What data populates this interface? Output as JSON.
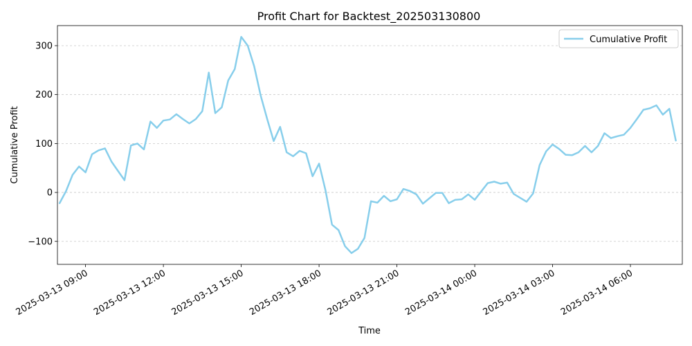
{
  "chart_data": {
    "type": "line",
    "title": "Profit Chart for Backtest_202503130800",
    "xlabel": "Time",
    "ylabel": "Cumulative Profit",
    "xlim": [
      "2025-03-13T07:55",
      "2025-03-14T08:00"
    ],
    "ylim": [
      -147,
      341
    ],
    "grid": {
      "y": true,
      "x": false,
      "style": "dashed"
    },
    "legend_position": "top-right",
    "yticks": [
      {
        "value": -100,
        "label": "−100"
      },
      {
        "value": 0,
        "label": "0"
      },
      {
        "value": 100,
        "label": "100"
      },
      {
        "value": 200,
        "label": "200"
      },
      {
        "value": 300,
        "label": "300"
      }
    ],
    "xticks": [
      {
        "value": "2025-03-13T09:00",
        "label": "2025-03-13 09:00"
      },
      {
        "value": "2025-03-13T12:00",
        "label": "2025-03-13 12:00"
      },
      {
        "value": "2025-03-13T15:00",
        "label": "2025-03-13 15:00"
      },
      {
        "value": "2025-03-13T18:00",
        "label": "2025-03-13 18:00"
      },
      {
        "value": "2025-03-13T21:00",
        "label": "2025-03-13 21:00"
      },
      {
        "value": "2025-03-14T00:00",
        "label": "2025-03-14 00:00"
      },
      {
        "value": "2025-03-14T03:00",
        "label": "2025-03-14 03:00"
      },
      {
        "value": "2025-03-14T06:00",
        "label": "2025-03-14 06:00"
      }
    ],
    "series": [
      {
        "name": "Cumulative Profit",
        "color": "#87ceeb",
        "x": [
          "2025-03-13T08:00",
          "2025-03-13T08:15",
          "2025-03-13T08:30",
          "2025-03-13T08:45",
          "2025-03-13T09:00",
          "2025-03-13T09:15",
          "2025-03-13T09:30",
          "2025-03-13T09:45",
          "2025-03-13T10:00",
          "2025-03-13T10:15",
          "2025-03-13T10:30",
          "2025-03-13T10:45",
          "2025-03-13T11:00",
          "2025-03-13T11:15",
          "2025-03-13T11:30",
          "2025-03-13T11:45",
          "2025-03-13T12:00",
          "2025-03-13T12:15",
          "2025-03-13T12:30",
          "2025-03-13T12:45",
          "2025-03-13T13:00",
          "2025-03-13T13:15",
          "2025-03-13T13:30",
          "2025-03-13T13:45",
          "2025-03-13T14:00",
          "2025-03-13T14:15",
          "2025-03-13T14:30",
          "2025-03-13T14:45",
          "2025-03-13T15:00",
          "2025-03-13T15:15",
          "2025-03-13T15:30",
          "2025-03-13T15:45",
          "2025-03-13T16:00",
          "2025-03-13T16:15",
          "2025-03-13T16:30",
          "2025-03-13T16:45",
          "2025-03-13T17:00",
          "2025-03-13T17:15",
          "2025-03-13T17:30",
          "2025-03-13T17:45",
          "2025-03-13T18:00",
          "2025-03-13T18:15",
          "2025-03-13T18:30",
          "2025-03-13T18:45",
          "2025-03-13T19:00",
          "2025-03-13T19:15",
          "2025-03-13T19:30",
          "2025-03-13T19:45",
          "2025-03-13T20:00",
          "2025-03-13T20:15",
          "2025-03-13T20:30",
          "2025-03-13T20:45",
          "2025-03-13T21:00",
          "2025-03-13T21:15",
          "2025-03-13T21:30",
          "2025-03-13T21:45",
          "2025-03-13T22:00",
          "2025-03-13T22:15",
          "2025-03-13T22:30",
          "2025-03-13T22:45",
          "2025-03-13T23:00",
          "2025-03-13T23:15",
          "2025-03-13T23:30",
          "2025-03-13T23:45",
          "2025-03-14T00:00",
          "2025-03-14T00:15",
          "2025-03-14T00:30",
          "2025-03-14T00:45",
          "2025-03-14T01:00",
          "2025-03-14T01:15",
          "2025-03-14T01:30",
          "2025-03-14T01:45",
          "2025-03-14T02:00",
          "2025-03-14T02:15",
          "2025-03-14T02:30",
          "2025-03-14T02:45",
          "2025-03-14T03:00",
          "2025-03-14T03:15",
          "2025-03-14T03:30",
          "2025-03-14T03:45",
          "2025-03-14T04:00",
          "2025-03-14T04:15",
          "2025-03-14T04:30",
          "2025-03-14T04:45",
          "2025-03-14T05:00",
          "2025-03-14T05:15",
          "2025-03-14T05:30",
          "2025-03-14T05:45",
          "2025-03-14T06:00",
          "2025-03-14T06:15",
          "2025-03-14T06:30",
          "2025-03-14T06:45",
          "2025-03-14T07:00",
          "2025-03-14T07:15",
          "2025-03-14T07:30",
          "2025-03-14T07:45"
        ],
        "y": [
          -22,
          3,
          36,
          53,
          41,
          78,
          86,
          90,
          63,
          44,
          25,
          96,
          100,
          88,
          145,
          132,
          147,
          149,
          160,
          150,
          141,
          150,
          166,
          245,
          162,
          174,
          229,
          252,
          318,
          300,
          258,
          198,
          150,
          105,
          134,
          82,
          74,
          85,
          80,
          33,
          59,
          4,
          -66,
          -77,
          -110,
          -124,
          -115,
          -93,
          -18,
          -21,
          -7,
          -18,
          -14,
          7,
          3,
          -4,
          -23,
          -12,
          -1,
          -1,
          -22,
          -15,
          -14,
          -4,
          -15,
          2,
          19,
          22,
          18,
          20,
          -3,
          -11,
          -19,
          -2,
          56,
          84,
          98,
          89,
          77,
          76,
          82,
          95,
          82,
          95,
          121,
          111,
          115,
          118,
          132,
          150,
          169,
          172,
          178,
          159,
          171,
          106
        ]
      }
    ]
  }
}
